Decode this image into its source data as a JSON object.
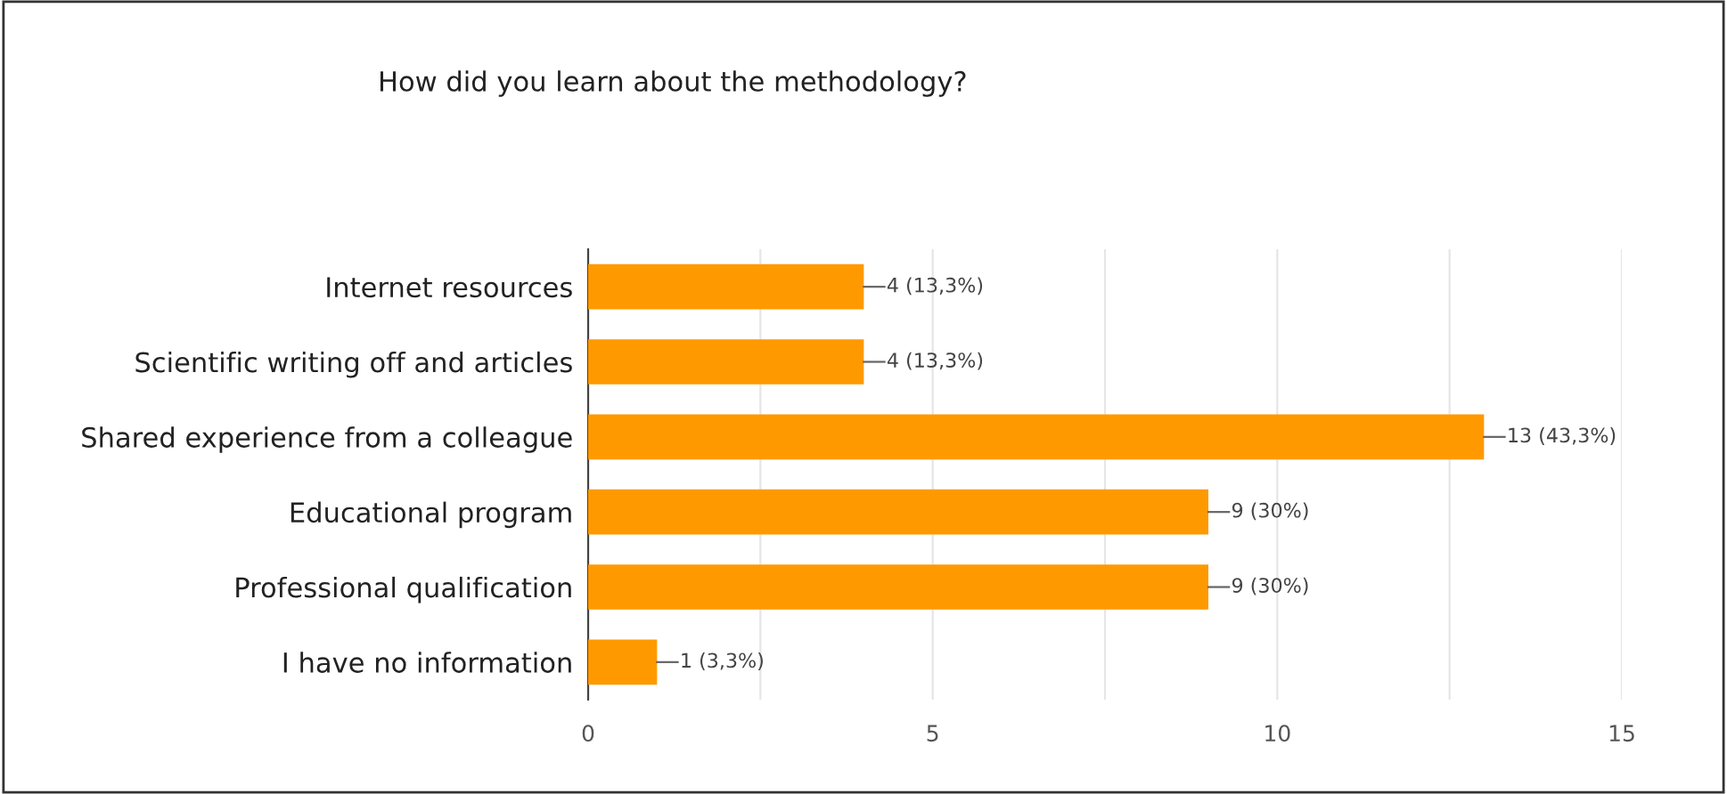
{
  "chart_data": {
    "type": "bar",
    "orientation": "horizontal",
    "title": "How did you learn about the methodology?",
    "categories": [
      "Internet resources",
      "Scientific writing off and articles",
      "Shared experience from a colleague",
      "Educational program",
      "Professional qualification",
      "I have no information"
    ],
    "values": [
      4,
      4,
      13,
      9,
      9,
      1
    ],
    "value_labels": [
      "4 (13,3%)",
      "4 (13,3%)",
      "13 (43,3%)",
      "9 (30%)",
      "9 (30%)",
      "1 (3,3%)"
    ],
    "color": "#ff9900",
    "xlim": [
      0,
      15
    ],
    "xticks": [
      0,
      {
        "value": 2.5,
        "label": null
      },
      5,
      {
        "value": 7.5,
        "label": null
      },
      10,
      {
        "value": 12.5,
        "label": null
      },
      15
    ],
    "grid": "x",
    "legend": false
  }
}
